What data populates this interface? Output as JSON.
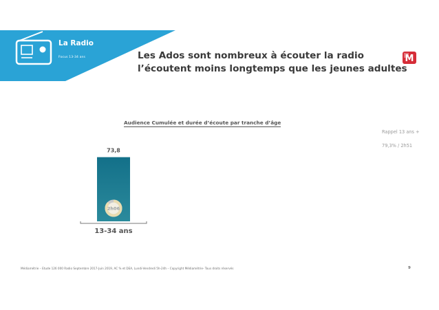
{
  "header": {
    "section_title": "La Radio",
    "section_subtitle": "Focus 13-34 ans",
    "headline_line1": "Les Ados sont nombreux à écouter la radio",
    "headline_line2": "l’écoutent moins longtemps que les jeunes adultes",
    "logo_letter": "M",
    "colors": {
      "banner": "#2aa3d6",
      "logo": "#d62d38"
    }
  },
  "reminder": {
    "line1": "Rappel 13 ans +",
    "line2": "79,3% / 2h51"
  },
  "chart_data": {
    "type": "bar",
    "title": "Audience Cumulée et durée d’écoute par tranche d’âge",
    "categories": [
      "13-34 ans"
    ],
    "values": [
      73.8
    ],
    "value_labels": [
      "73,8"
    ],
    "ylim": [
      0,
      100
    ],
    "duration_labels": [
      "2h06"
    ],
    "duration_fraction": [
      0.875
    ],
    "colors": {
      "bar_top": "#137089",
      "bar_bottom": "#2b8a9c",
      "donut": "#e9dcb0",
      "donut_track": "#c9c9c9"
    }
  },
  "footer": {
    "source": "Médiamétrie – Etude 126 000 Radio Septembre 2017-Juin 2019, AC % et DEA, Lundi-Vendredi 5h-24h – Copyright Médiamétrie- Tous droits réservés",
    "page_number": "9"
  }
}
